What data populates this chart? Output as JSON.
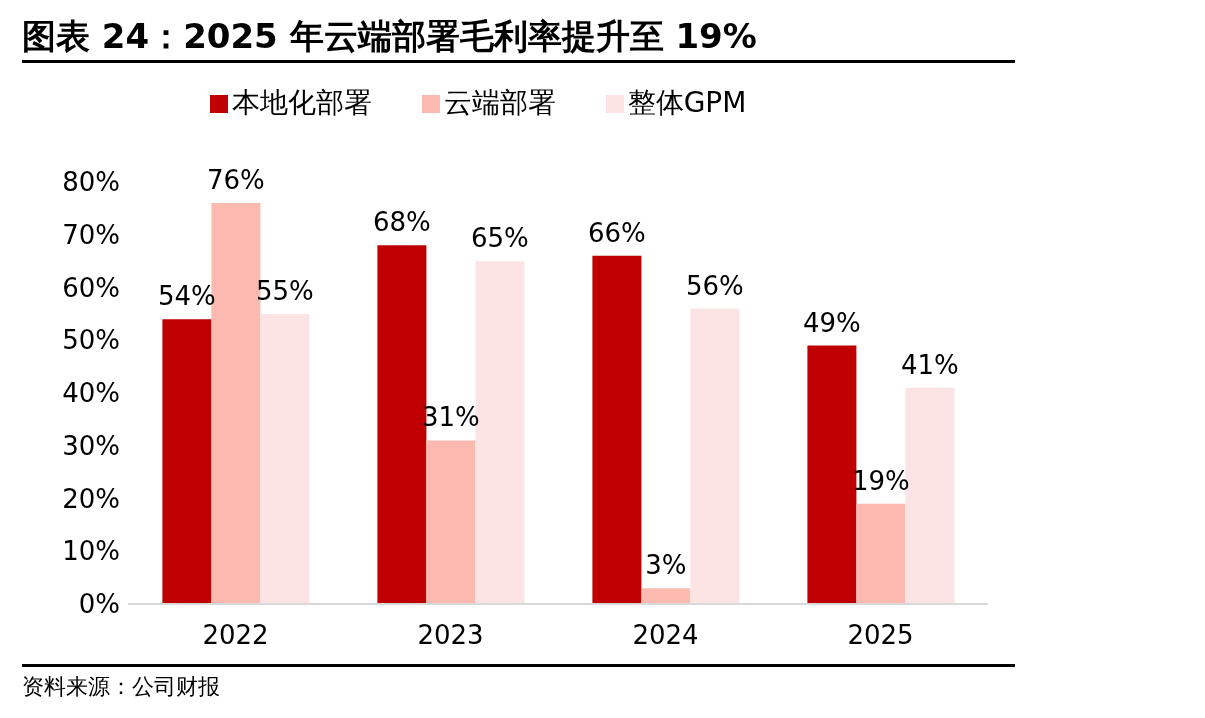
{
  "chart_data": {
    "type": "bar",
    "title": "图表 24：2025 年云端部署毛利率提升至 19%",
    "categories": [
      "2022",
      "2023",
      "2024",
      "2025"
    ],
    "series": [
      {
        "name": "本地化部署",
        "color": "#c00000",
        "values": [
          54,
          68,
          66,
          49
        ],
        "value_labels": [
          "54%",
          "68%",
          "66%",
          "49%"
        ]
      },
      {
        "name": "云端部署",
        "color": "#fbb9b0",
        "values": [
          76,
          31,
          3,
          19
        ],
        "value_labels": [
          "76%",
          "31%",
          "3%",
          "19%"
        ]
      },
      {
        "name": "整体GPM",
        "color": "#fde4e4",
        "values": [
          55,
          65,
          56,
          41
        ],
        "value_labels": [
          "55%",
          "65%",
          "56%",
          "41%"
        ]
      }
    ],
    "ylim": [
      0,
      80
    ],
    "yticks": [
      {
        "value": 0,
        "label": "0%"
      },
      {
        "value": 10,
        "label": "10%"
      },
      {
        "value": 20,
        "label": "20%"
      },
      {
        "value": 30,
        "label": "30%"
      },
      {
        "value": 40,
        "label": "40%"
      },
      {
        "value": 50,
        "label": "50%"
      },
      {
        "value": 60,
        "label": "60%"
      },
      {
        "value": 70,
        "label": "70%"
      },
      {
        "value": 80,
        "label": "80%"
      }
    ],
    "grid": false,
    "legend": "top",
    "annotations": [
      "资料来源：公司财报"
    ]
  }
}
